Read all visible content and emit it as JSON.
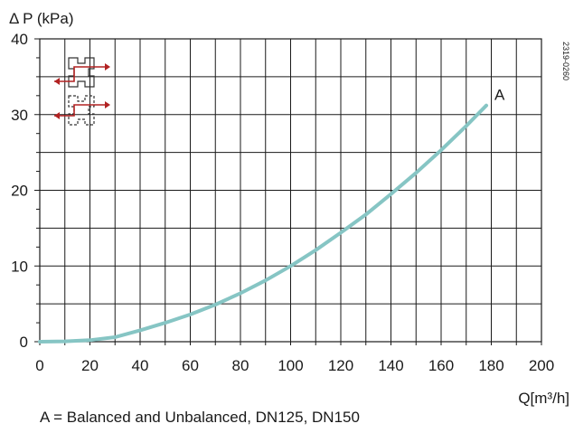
{
  "chart_data": {
    "type": "line",
    "ylabel": "Δ P (kPa)",
    "xlabel": "Q[m³/h]",
    "xlim": [
      0,
      200
    ],
    "ylim": [
      0,
      40
    ],
    "x_ticks": [
      0,
      20,
      40,
      60,
      80,
      100,
      120,
      140,
      160,
      180,
      200
    ],
    "y_ticks": [
      0,
      10,
      20,
      30,
      40
    ],
    "grid": true,
    "curve_color": "#86c5c4",
    "series": [
      {
        "name": "A",
        "x": [
          0,
          10,
          20,
          30,
          40,
          50,
          60,
          70,
          80,
          90,
          100,
          110,
          120,
          130,
          140,
          150,
          160,
          170,
          178
        ],
        "y": [
          0,
          0.05,
          0.2,
          0.6,
          1.5,
          2.5,
          3.6,
          4.9,
          6.4,
          8.1,
          10.0,
          12.1,
          14.4,
          16.8,
          19.5,
          22.3,
          25.3,
          28.5,
          31.2
        ]
      }
    ],
    "figure_id": "2319-0260",
    "caption": "A = Balanced and Unbalanced, DN125, DN150"
  }
}
